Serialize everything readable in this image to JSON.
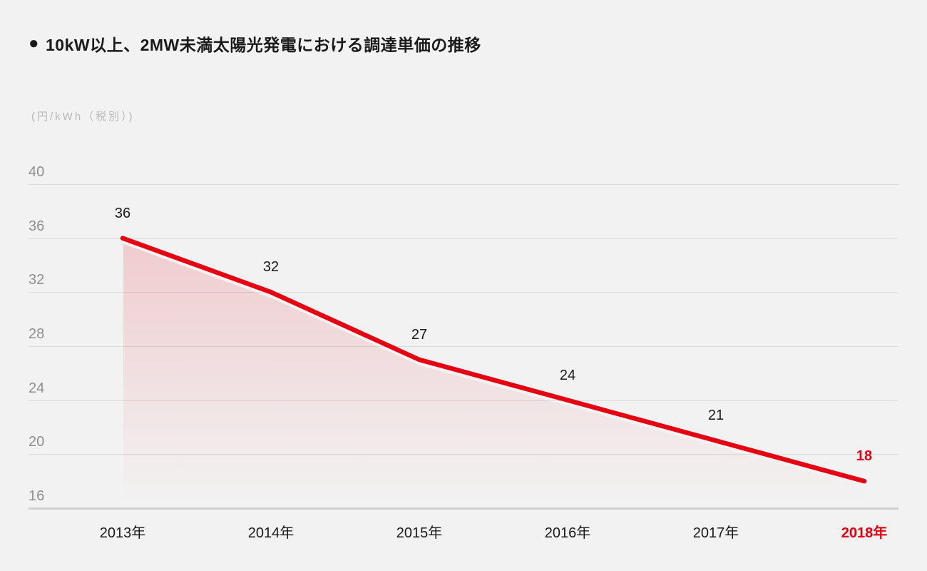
{
  "title": {
    "bullet": "●",
    "text": "10kW以上、2MW未満太陽光発電における調達単価の推移"
  },
  "unit_label": "(円/kWh（税別）)",
  "colors": {
    "background": "#f2f2f2",
    "line": "#e50012",
    "accent": "#e50012",
    "grid": "#dcdcdc",
    "grid_base": "#d0d0d0",
    "tick_label": "#8f8f8f",
    "value_label": "#1a1a1a",
    "unit_label": "#b7b7b7",
    "fill_top_opacity": 0.16
  },
  "chart_data": {
    "type": "area",
    "title": "10kW以上、2MW未満太陽光発電における調達単価の推移",
    "ylabel": "(円/kWh（税別）)",
    "categories": [
      "2013年",
      "2014年",
      "2015年",
      "2016年",
      "2017年",
      "2018年"
    ],
    "values": [
      36,
      32,
      27,
      24,
      21,
      18
    ],
    "ylim": [
      16,
      40
    ],
    "yticks": [
      16,
      20,
      24,
      28,
      32,
      36,
      40
    ],
    "grid": true,
    "legend": false,
    "highlight_last_index": 5
  }
}
